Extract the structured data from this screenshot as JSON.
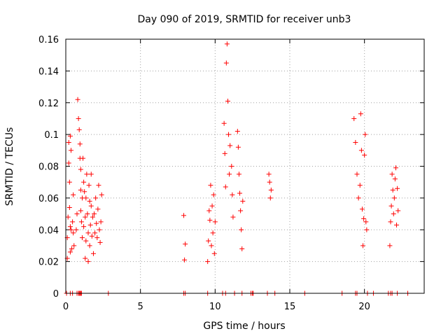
{
  "chart_data": {
    "type": "scatter",
    "title": "Day 090 of 2019, SRMTID for receiver unb3",
    "xlabel": "GPS time / hours",
    "ylabel": "SRMTID / TECUs",
    "xlim": [
      0,
      24
    ],
    "ylim": [
      0,
      0.16
    ],
    "xticks": [
      0,
      5,
      10,
      15,
      20
    ],
    "yticks": [
      0,
      0.02,
      0.04,
      0.06,
      0.08,
      0.1,
      0.12,
      0.14,
      0.16
    ],
    "xtick_labels": [
      "0",
      "5",
      "10",
      "15",
      "20"
    ],
    "ytick_labels": [
      "0",
      "0.02",
      "0.04",
      "0.06",
      "0.08",
      "0.1",
      "0.12",
      "0.14",
      "0.16"
    ],
    "grid": true,
    "marker": "+",
    "color": "#ff0000",
    "series": [
      {
        "name": "SRMTID",
        "x": [
          0.1,
          0.1,
          0.15,
          0.2,
          0.2,
          0.25,
          0.25,
          0.3,
          0.3,
          0.3,
          0.35,
          0.35,
          0.4,
          0.45,
          0.5,
          0.5,
          0.55,
          0.7,
          0.75,
          0.8,
          0.85,
          0.9,
          0.95,
          0.95,
          1.0,
          1.0,
          1.0,
          1.05,
          1.1,
          1.1,
          1.15,
          1.2,
          1.2,
          1.25,
          1.3,
          1.3,
          1.35,
          1.35,
          1.4,
          1.45,
          1.5,
          1.5,
          1.55,
          1.6,
          1.6,
          1.65,
          1.7,
          1.7,
          1.75,
          1.8,
          1.85,
          1.9,
          1.95,
          2.0,
          2.05,
          2.1,
          2.15,
          2.2,
          2.25,
          2.3,
          2.35,
          2.4,
          7.9,
          7.95,
          8.0,
          9.5,
          9.55,
          9.6,
          9.65,
          9.7,
          9.75,
          9.8,
          9.85,
          9.9,
          9.95,
          10.0,
          10.6,
          10.65,
          10.7,
          10.75,
          10.8,
          10.85,
          10.9,
          10.95,
          11.0,
          11.1,
          11.15,
          11.2,
          11.5,
          11.55,
          11.6,
          11.65,
          11.7,
          11.75,
          11.8,
          11.85,
          13.6,
          13.65,
          13.7,
          13.75,
          19.3,
          19.4,
          19.5,
          19.6,
          19.7,
          19.75,
          19.8,
          19.85,
          19.9,
          19.95,
          20.0,
          20.05,
          20.1,
          20.15,
          21.7,
          21.75,
          21.8,
          21.85,
          21.9,
          21.95,
          22.0,
          22.05,
          22.1,
          22.15,
          22.2,
          22.25,
          0.05,
          0.3,
          0.45,
          0.75,
          0.85,
          0.9,
          0.95,
          1.0,
          1.05,
          2.85,
          7.9,
          8.0,
          9.5,
          10.5,
          10.7,
          11.3,
          11.8,
          12.4,
          12.5,
          12.55,
          13.5,
          14.0,
          16.0,
          18.5,
          19.4,
          19.5,
          20.2,
          20.6,
          21.6,
          21.75,
          21.85,
          22.2,
          22.9
        ],
        "y": [
          0.022,
          0.035,
          0.048,
          0.082,
          0.095,
          0.07,
          0.054,
          0.026,
          0.042,
          0.099,
          0.04,
          0.09,
          0.028,
          0.045,
          0.038,
          0.062,
          0.03,
          0.04,
          0.05,
          0.122,
          0.11,
          0.103,
          0.094,
          0.085,
          0.078,
          0.065,
          0.052,
          0.045,
          0.06,
          0.035,
          0.085,
          0.07,
          0.042,
          0.064,
          0.048,
          0.022,
          0.033,
          0.06,
          0.075,
          0.05,
          0.02,
          0.038,
          0.068,
          0.058,
          0.03,
          0.043,
          0.055,
          0.075,
          0.036,
          0.048,
          0.025,
          0.05,
          0.038,
          0.06,
          0.044,
          0.035,
          0.053,
          0.068,
          0.04,
          0.032,
          0.045,
          0.062,
          0.049,
          0.021,
          0.031,
          0.02,
          0.033,
          0.052,
          0.046,
          0.068,
          0.03,
          0.055,
          0.038,
          0.062,
          0.025,
          0.045,
          0.107,
          0.088,
          0.067,
          0.145,
          0.157,
          0.121,
          0.1,
          0.075,
          0.093,
          0.08,
          0.062,
          0.048,
          0.102,
          0.092,
          0.075,
          0.063,
          0.052,
          0.04,
          0.028,
          0.058,
          0.075,
          0.07,
          0.06,
          0.065,
          0.11,
          0.095,
          0.075,
          0.06,
          0.068,
          0.113,
          0.09,
          0.053,
          0.03,
          0.047,
          0.087,
          0.1,
          0.045,
          0.04,
          0.03,
          0.045,
          0.055,
          0.075,
          0.065,
          0.05,
          0.06,
          0.072,
          0.079,
          0.043,
          0.066,
          0.052,
          0,
          0,
          0,
          0,
          0,
          0,
          0,
          0,
          0,
          0,
          0,
          0,
          0,
          0,
          0,
          0,
          0,
          0,
          0,
          0,
          0,
          0,
          0,
          0,
          0,
          0,
          0,
          0,
          0,
          0,
          0,
          0,
          0
        ]
      }
    ]
  }
}
